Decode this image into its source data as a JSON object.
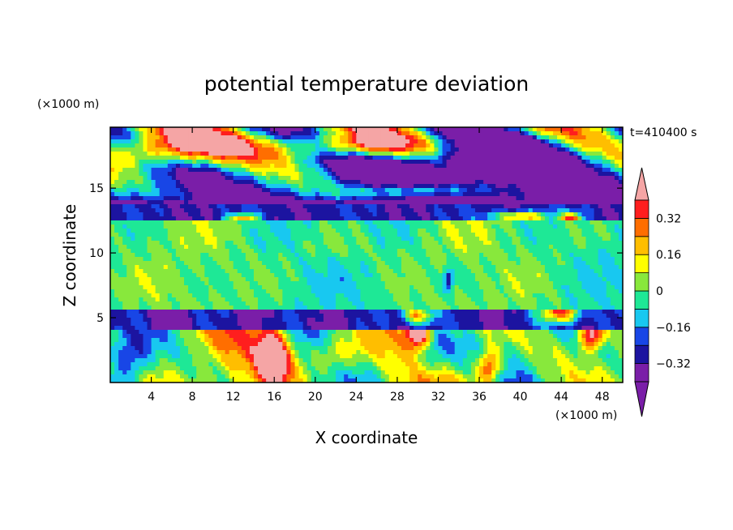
{
  "chart_data": {
    "type": "heatmap",
    "title": "potential temperature deviation",
    "xlabel": "X coordinate",
    "ylabel": "Z coordinate",
    "x_unit": "(×1000 m)",
    "y_unit": "(×1000 m)",
    "time_label": "t=410400 s",
    "xlim": [
      0,
      50
    ],
    "ylim": [
      0,
      19.7
    ],
    "x_ticks": [
      "4",
      "8",
      "12",
      "16",
      "20",
      "24",
      "28",
      "32",
      "36",
      "40",
      "44",
      "48"
    ],
    "x_tick_values": [
      4,
      8,
      12,
      16,
      20,
      24,
      28,
      32,
      36,
      40,
      44,
      48
    ],
    "y_ticks": [
      "5",
      "10",
      "15"
    ],
    "y_tick_values": [
      5,
      10,
      15
    ],
    "colorbar": {
      "levels": [
        -0.4,
        -0.32,
        -0.24,
        -0.16,
        -0.08,
        0,
        0.08,
        0.16,
        0.24,
        0.32,
        0.4
      ],
      "tick_labels": [
        "0.32",
        "0.16",
        "0",
        "−0.16",
        "−0.32"
      ],
      "tick_values": [
        0.32,
        0.16,
        0,
        -0.16,
        -0.32
      ],
      "colors": [
        "#7a1ea8",
        "#1c14a0",
        "#1846e6",
        "#18c8f0",
        "#1ee896",
        "#88e83c",
        "#ffff00",
        "#ffbe00",
        "#ff6e00",
        "#ff1e1e"
      ],
      "over_color": "#f5a5a5",
      "under_color": "#7a1ea8"
    }
  }
}
